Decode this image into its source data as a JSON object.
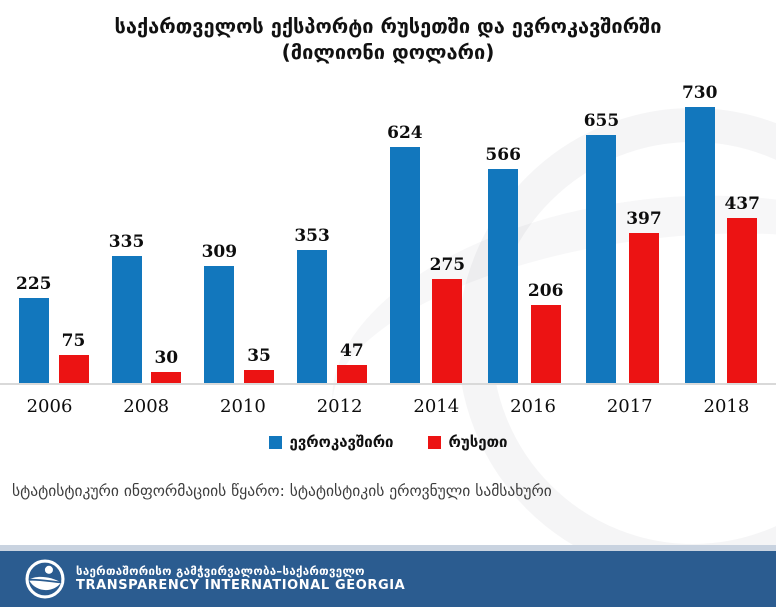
{
  "title": {
    "line1": "საქართველოს ექსპორტი რუსეთში და ევროკავშირში",
    "line2": "(მილიონი დოლარი)"
  },
  "chart_data": {
    "type": "bar",
    "title": "საქართველოს ექსპორტი რუსეთში და ევროკავშირში (მილიონი დოლარი)",
    "categories": [
      "2006",
      "2008",
      "2010",
      "2012",
      "2014",
      "2016",
      "2017",
      "2018"
    ],
    "series": [
      {
        "key": "eu",
        "name": "ევროკავშირი",
        "color": "#1277bd",
        "values": [
          225,
          335,
          309,
          353,
          624,
          566,
          655,
          730
        ]
      },
      {
        "key": "russia",
        "name": "რუსეთი",
        "color": "#ec1313",
        "values": [
          75,
          30,
          35,
          47,
          275,
          206,
          397,
          437
        ]
      }
    ],
    "xlabel": "",
    "ylabel": "",
    "ylim": [
      0,
      780
    ],
    "grid": false,
    "legend_position": "bottom",
    "value_labels": true
  },
  "source_note": "სტატისტიკური ინფორმაციის წყარო: სტატისტიკის ეროვნული სამსახური",
  "footer": {
    "org_name_georgian": "საერთაშორისო გამჭვირვალობა–საქართველო",
    "org_name_english": "TRANSPARENCY INTERNATIONAL GEORGIA"
  },
  "colors": {
    "eu_bar": "#1277bd",
    "russia_bar": "#ec1313",
    "axis_line": "#d9d9d9",
    "footer_background": "#2b5c90",
    "footer_stripe": "#c9d3e0"
  }
}
